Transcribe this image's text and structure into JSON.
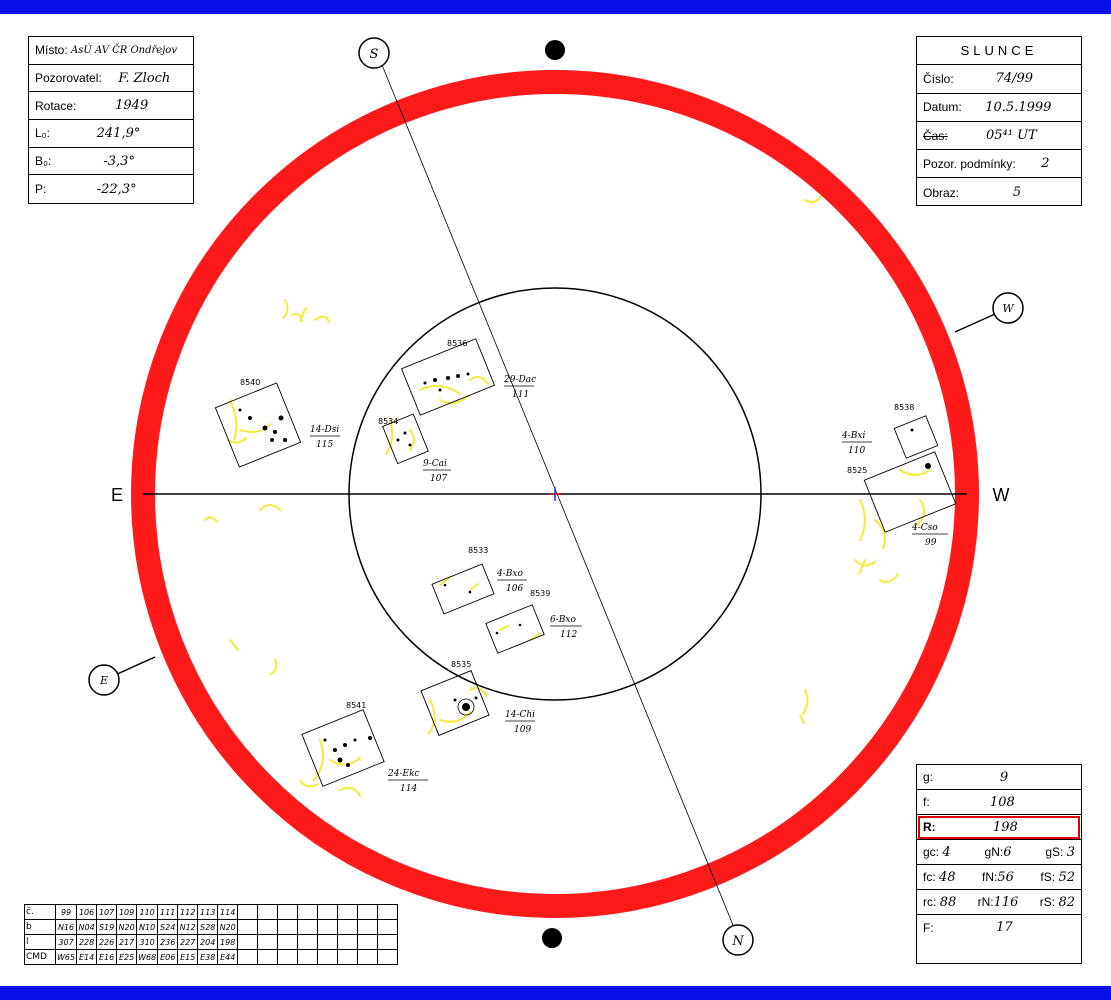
{
  "colors": {
    "band": "#0a10e8",
    "ring": "#ff1a1a",
    "faculae": "#f5ea3a",
    "highlight": "#e00000"
  },
  "info_left": [
    {
      "label": "Místo:",
      "value": "AsÚ AV ČR Ondřejov"
    },
    {
      "label": "Pozorovatel:",
      "value": "F. Zloch"
    },
    {
      "label": "Rotace:",
      "value": "1949"
    },
    {
      "label": "L₀:",
      "value": "241,9°"
    },
    {
      "label": "B₀:",
      "value": "-3,3°"
    },
    {
      "label": "P:",
      "value": "-22,3°"
    }
  ],
  "info_right": {
    "title": "SLUNCE",
    "rows": [
      {
        "label": "Číslo:",
        "value": "74/99"
      },
      {
        "label": "Datum:",
        "value": "10.5.1999"
      },
      {
        "label": "Čas:",
        "value": "05⁴¹ UT"
      },
      {
        "label": "Pozor. podmínky:",
        "value": "2"
      },
      {
        "label": "Obraz:",
        "value": "5"
      }
    ]
  },
  "results": {
    "g": {
      "label": "g:",
      "value": "9"
    },
    "f": {
      "label": "f:",
      "value": "108"
    },
    "R": {
      "label": "R:",
      "value": "198"
    },
    "gc": "gc:",
    "gc_val": "4",
    "gN": "gN:",
    "gN_val": "6",
    "gS": "gS:",
    "gS_val": "3",
    "fc": "fc:",
    "fc_val": "48",
    "fN": "fN:",
    "fN_val": "56",
    "fS": "fS:",
    "fS_val": "52",
    "rc": "rc:",
    "rc_val": "88",
    "rN": "rN:",
    "rN_val": "116",
    "rS": "rS:",
    "rS_val": "82",
    "F": {
      "label": "F:",
      "value": "17"
    }
  },
  "directions": {
    "E_left": "E",
    "W_right": "W",
    "S": "S",
    "N": "N",
    "E_circle": "E",
    "W_circle": "W"
  },
  "groups": [
    {
      "number": "8540",
      "code": "14-Dsi",
      "count": "115"
    },
    {
      "number": "8536",
      "code": "29-Dac",
      "count": "111"
    },
    {
      "number": "8534",
      "code": "9-Cai",
      "count": "107"
    },
    {
      "number": "8538",
      "code": "4-Bxi",
      "count": "110"
    },
    {
      "number": "8525",
      "code": "4-Cso",
      "count": "99"
    },
    {
      "number": "8533",
      "code": "4-Bxo",
      "count": "106"
    },
    {
      "number": "8539",
      "code": "6-Bxo",
      "count": "112"
    },
    {
      "number": "8535",
      "code": "14-Chi",
      "count": "109"
    },
    {
      "number": "8541",
      "code": "24-Ekc",
      "count": "114"
    }
  ],
  "table": {
    "rows": [
      {
        "head": "č.",
        "cells": [
          "99",
          "106",
          "107",
          "109",
          "110",
          "111",
          "112",
          "113",
          "114"
        ]
      },
      {
        "head": "b",
        "cells": [
          "N16",
          "N04",
          "S19",
          "N20",
          "N10",
          "S24",
          "N12",
          "S28",
          "N20"
        ]
      },
      {
        "head": "l",
        "cells": [
          "307",
          "228",
          "226",
          "217",
          "310",
          "236",
          "227",
          "204",
          "198"
        ]
      },
      {
        "head": "CMD",
        "cells": [
          "W65",
          "E14",
          "E16",
          "E25",
          "W68",
          "E06",
          "E15",
          "E38",
          "E44"
        ]
      }
    ],
    "empty_columns": 8
  }
}
